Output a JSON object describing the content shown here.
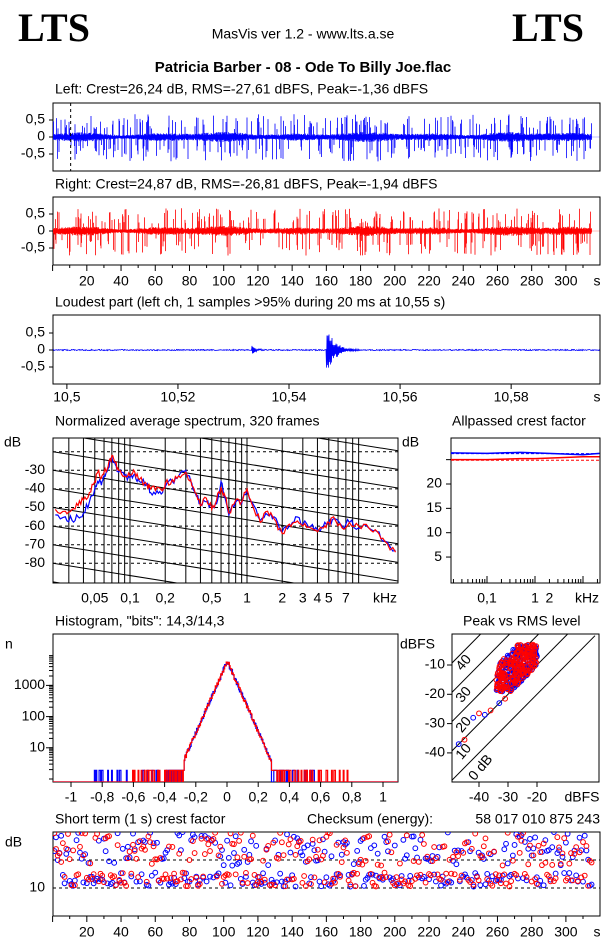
{
  "header": {
    "logo_left": "LTS",
    "logo_right": "LTS",
    "app": "MasVis ver 1.2 - www.lts.a.se",
    "file_title": "Patricia Barber - 08 - Ode To Billy Joe.flac"
  },
  "colors": {
    "left": "#0000ff",
    "right": "#ff0000"
  },
  "time_axis": {
    "ticks": [
      20,
      40,
      60,
      80,
      100,
      120,
      140,
      160,
      180,
      200,
      220,
      240,
      260,
      280,
      300
    ],
    "labels": [
      "20",
      "40",
      "60",
      "80",
      "100",
      "120",
      "140",
      "160",
      "180",
      "200",
      "220",
      "240",
      "260",
      "280",
      "300"
    ],
    "unit": "s"
  },
  "chart_data": [
    {
      "type": "line",
      "title": "Left: Crest=26,24 dB, RMS=-27,61 dBFS, Peak=-1,36 dBFS",
      "yticks": [
        "0,5",
        "0",
        "-0,5"
      ],
      "ytick_values": [
        0.5,
        0,
        -0.5
      ],
      "xlim": [
        0,
        320
      ],
      "duration_s": 315,
      "crest_db": 26.24,
      "rms_dbfs": -27.61,
      "peak_dbfs": -1.36,
      "marker_s": 10.55
    },
    {
      "type": "line",
      "title": "Right: Crest=24,87 dB, RMS=-26,81 dBFS, Peak=-1,94 dBFS",
      "yticks": [
        "0,5",
        "0",
        "-0,5"
      ],
      "ytick_values": [
        0.5,
        0,
        -0.5
      ],
      "xlim": [
        0,
        320
      ],
      "duration_s": 315,
      "crest_db": 24.87,
      "rms_dbfs": -26.81,
      "peak_dbfs": -1.94
    },
    {
      "type": "line",
      "title": "Loudest part (left  ch, 1 samples >95% during 20 ms at 10,55 s)",
      "yticks": [
        "0,5",
        "0",
        "-0,5"
      ],
      "ytick_values": [
        0.5,
        0,
        -0.5
      ],
      "xticks": [
        "10,5",
        "10,52",
        "10,54",
        "10,56",
        "10,58"
      ],
      "xtick_values": [
        10.5,
        10.52,
        10.54,
        10.56,
        10.58
      ],
      "xunit": "s",
      "xlim": [
        10.4975,
        10.596
      ],
      "transients": [
        {
          "t": 10.5333,
          "amp": 0.15
        },
        {
          "t": 10.5467,
          "amp": 0.8
        }
      ]
    },
    {
      "type": "line",
      "title": "Normalized average spectrum, 320 frames",
      "ylabel": "dB",
      "yticks": [
        "-30",
        "-40",
        "-50",
        "-60",
        "-70",
        "-80"
      ],
      "ytick_values": [
        -30,
        -40,
        -50,
        -60,
        -70,
        -80
      ],
      "ylim": [
        -88,
        -16
      ],
      "xticks": [
        "0,05",
        "0,1",
        "0,2",
        "0,5",
        "1",
        "2",
        "3",
        "4",
        "5",
        "7"
      ],
      "xtick_values": [
        0.05,
        0.1,
        0.2,
        0.5,
        1,
        2,
        3,
        4,
        5,
        7
      ],
      "xunit": "kHz",
      "xscale": "log",
      "series": [
        {
          "name": "left",
          "points": [
            [
              0.023,
              -54
            ],
            [
              0.028,
              -55
            ],
            [
              0.032,
              -57
            ],
            [
              0.036,
              -55
            ],
            [
              0.04,
              -53
            ],
            [
              0.045,
              -47
            ],
            [
              0.05,
              -40
            ],
            [
              0.053,
              -36
            ],
            [
              0.057,
              -38
            ],
            [
              0.06,
              -33
            ],
            [
              0.065,
              -29
            ],
            [
              0.07,
              -23
            ],
            [
              0.075,
              -27
            ],
            [
              0.08,
              -31
            ],
            [
              0.09,
              -33
            ],
            [
              0.1,
              -34
            ],
            [
              0.11,
              -32
            ],
            [
              0.12,
              -36
            ],
            [
              0.14,
              -37
            ],
            [
              0.15,
              -42
            ],
            [
              0.17,
              -41
            ],
            [
              0.19,
              -42
            ],
            [
              0.2,
              -39
            ],
            [
              0.23,
              -36
            ],
            [
              0.26,
              -33
            ],
            [
              0.3,
              -30
            ],
            [
              0.33,
              -36
            ],
            [
              0.36,
              -42
            ],
            [
              0.4,
              -48
            ],
            [
              0.45,
              -47
            ],
            [
              0.5,
              -50
            ],
            [
              0.55,
              -48
            ],
            [
              0.6,
              -36
            ],
            [
              0.65,
              -45
            ],
            [
              0.7,
              -54
            ],
            [
              0.8,
              -47
            ],
            [
              0.9,
              -48
            ],
            [
              1.0,
              -41
            ],
            [
              1.1,
              -47
            ],
            [
              1.3,
              -57
            ],
            [
              1.5,
              -54
            ],
            [
              1.7,
              -55
            ],
            [
              2.0,
              -63
            ],
            [
              2.3,
              -60
            ],
            [
              2.6,
              -55
            ],
            [
              3.0,
              -59
            ],
            [
              3.5,
              -60
            ],
            [
              4.0,
              -62
            ],
            [
              4.5,
              -60
            ],
            [
              5.0,
              -58
            ],
            [
              5.5,
              -56
            ],
            [
              6.5,
              -60
            ],
            [
              7.5,
              -58
            ],
            [
              9.0,
              -61
            ],
            [
              11,
              -61
            ],
            [
              13,
              -63
            ],
            [
              15,
              -68
            ],
            [
              18.6,
              -73
            ]
          ]
        },
        {
          "name": "right",
          "points": [
            [
              0.023,
              -51
            ],
            [
              0.028,
              -52
            ],
            [
              0.032,
              -51
            ],
            [
              0.036,
              -49
            ],
            [
              0.04,
              -46
            ],
            [
              0.045,
              -42
            ],
            [
              0.05,
              -36
            ],
            [
              0.053,
              -31
            ],
            [
              0.057,
              -34
            ],
            [
              0.06,
              -31
            ],
            [
              0.065,
              -28
            ],
            [
              0.07,
              -22
            ],
            [
              0.075,
              -26
            ],
            [
              0.08,
              -30
            ],
            [
              0.09,
              -33
            ],
            [
              0.1,
              -33
            ],
            [
              0.11,
              -31
            ],
            [
              0.12,
              -35
            ],
            [
              0.14,
              -38
            ],
            [
              0.15,
              -40
            ],
            [
              0.17,
              -39
            ],
            [
              0.19,
              -41
            ],
            [
              0.2,
              -37
            ],
            [
              0.23,
              -35
            ],
            [
              0.26,
              -33
            ],
            [
              0.3,
              -31
            ],
            [
              0.33,
              -35
            ],
            [
              0.36,
              -42
            ],
            [
              0.4,
              -49
            ],
            [
              0.45,
              -45
            ],
            [
              0.5,
              -51
            ],
            [
              0.55,
              -46
            ],
            [
              0.6,
              -39
            ],
            [
              0.65,
              -44
            ],
            [
              0.7,
              -53
            ],
            [
              0.8,
              -46
            ],
            [
              0.9,
              -47
            ],
            [
              1.0,
              -40
            ],
            [
              1.1,
              -48
            ],
            [
              1.3,
              -58
            ],
            [
              1.5,
              -52
            ],
            [
              1.7,
              -56
            ],
            [
              2.0,
              -64
            ],
            [
              2.3,
              -59
            ],
            [
              2.6,
              -58
            ],
            [
              3.0,
              -60
            ],
            [
              3.5,
              -61
            ],
            [
              4.0,
              -63
            ],
            [
              4.5,
              -61
            ],
            [
              5.0,
              -58
            ],
            [
              5.5,
              -55
            ],
            [
              6.5,
              -61
            ],
            [
              7.5,
              -58
            ],
            [
              9.0,
              -60
            ],
            [
              11,
              -61
            ],
            [
              13,
              -63
            ],
            [
              15,
              -68
            ],
            [
              18.6,
              -74
            ]
          ]
        }
      ]
    },
    {
      "type": "line",
      "title": "Allpassed crest factor",
      "ylabel": "dB",
      "yticks": [
        "20",
        "15",
        "10",
        "5"
      ],
      "ytick_values": [
        20,
        15,
        10,
        5
      ],
      "ylim": [
        0,
        29.6
      ],
      "xticks": [
        "0,1",
        "1",
        "2"
      ],
      "xtick_values": [
        0.1,
        1,
        2
      ],
      "xunit": "kHz",
      "xscale": "log",
      "series": [
        {
          "name": "left",
          "points": [
            [
              0.017,
              26.4
            ],
            [
              0.1,
              26.3
            ],
            [
              0.5,
              26.5
            ],
            [
              1,
              26.4
            ],
            [
              3,
              26.2
            ],
            [
              10,
              26.0
            ],
            [
              22,
              26.3
            ]
          ],
          "reference": 26.24
        },
        {
          "name": "right",
          "points": [
            [
              0.017,
              25.0
            ],
            [
              0.1,
              25.0
            ],
            [
              0.5,
              25.2
            ],
            [
              1,
              25.2
            ],
            [
              3,
              25.4
            ],
            [
              10,
              25.6
            ],
            [
              22,
              25.6
            ]
          ],
          "reference": 24.87
        }
      ]
    },
    {
      "type": "histogram",
      "title": "Histogram, \"bits\": 14,3/14,3",
      "ylabel": "n",
      "yscale": "log",
      "yticks": [
        "1000",
        "100",
        "10"
      ],
      "ytick_values": [
        1000,
        100,
        10
      ],
      "xticks": [
        "-1",
        "-0,8",
        "-0,6",
        "-0,4",
        "-0,2",
        "0",
        "0,2",
        "0,4",
        "0,6",
        "0,8",
        "1"
      ],
      "xtick_values": [
        -1,
        -0.8,
        -0.6,
        -0.4,
        -0.2,
        0,
        0.2,
        0.4,
        0.6,
        0.8,
        1
      ],
      "xlim": [
        -1.12,
        1.09
      ],
      "peak_count": 6000,
      "bits_left": 14.3,
      "bits_right": 14.3
    },
    {
      "type": "scatter",
      "title": "Peak vs RMS level",
      "ylabel": "dBFS",
      "yticks": [
        "-10",
        "-20",
        "-30",
        "-40"
      ],
      "ytick_values": [
        -10,
        -20,
        -30,
        -40
      ],
      "xticks": [
        "-40",
        "-30",
        "-20"
      ],
      "xtick_values": [
        -40,
        -30,
        -20
      ],
      "xunit": "dBFS",
      "xlim": [
        -49.7,
        -8.6
      ],
      "ylim": [
        -50,
        0.6
      ],
      "crest_lines": [
        "40",
        "30",
        "20",
        "10",
        "0 dB"
      ],
      "crest_line_values": [
        40,
        30,
        20,
        10,
        0
      ]
    },
    {
      "type": "scatter",
      "title": "Short term (1 s) crest factor",
      "checksum_label": "Checksum (energy):",
      "checksum_value": "58 017 010 875 243",
      "ylabel": "dB",
      "yticks": [
        "10"
      ],
      "ytick_values": [
        10
      ],
      "ylim": [
        0,
        30
      ],
      "xlim": [
        0,
        320
      ],
      "xunit": "s"
    }
  ]
}
